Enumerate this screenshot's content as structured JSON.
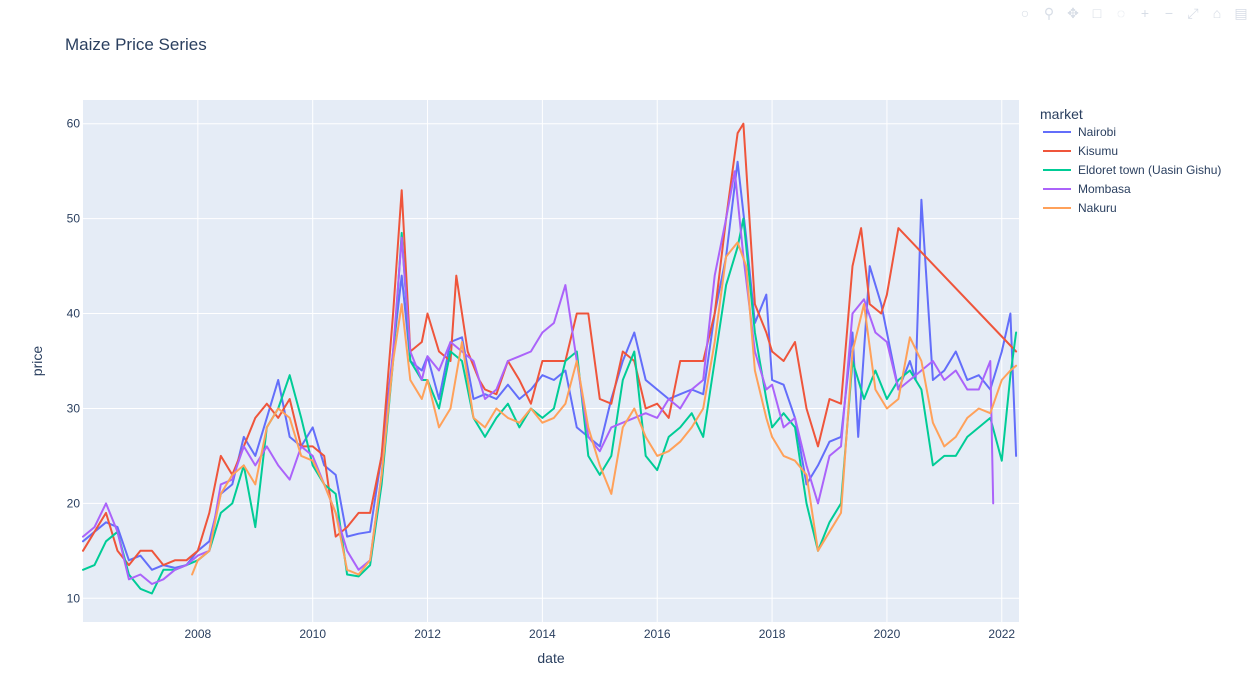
{
  "chart_data": {
    "type": "line",
    "title": "Maize Price Series",
    "xlabel": "date",
    "ylabel": "price",
    "legend_title": "market",
    "legend_position": "right",
    "grid": true,
    "x_ticks": [
      "2008",
      "2010",
      "2012",
      "2014",
      "2016",
      "2018",
      "2020",
      "2022"
    ],
    "y_ticks": [
      10,
      20,
      30,
      40,
      50,
      60
    ],
    "xlim": [
      2006.0,
      2022.3
    ],
    "ylim": [
      7.5,
      62.5
    ],
    "colors": {
      "plot_bg": "#e5ecf6",
      "grid": "#ffffff",
      "text": "#2a3f5f"
    },
    "series": [
      {
        "name": "Nairobi",
        "color": "#636efa",
        "x": [
          2006.0,
          2006.2,
          2006.4,
          2006.6,
          2006.8,
          2007.0,
          2007.2,
          2007.4,
          2007.6,
          2007.8,
          2008.0,
          2008.2,
          2008.4,
          2008.6,
          2008.8,
          2009.0,
          2009.2,
          2009.4,
          2009.6,
          2009.8,
          2010.0,
          2010.2,
          2010.4,
          2010.6,
          2010.8,
          2011.0,
          2011.2,
          2011.4,
          2011.55,
          2011.7,
          2011.9,
          2012.0,
          2012.2,
          2012.4,
          2012.6,
          2012.8,
          2013.0,
          2013.2,
          2013.4,
          2013.6,
          2013.8,
          2014.0,
          2014.2,
          2014.4,
          2014.6,
          2014.8,
          2015.0,
          2015.2,
          2015.4,
          2015.6,
          2015.8,
          2016.0,
          2016.2,
          2016.4,
          2016.6,
          2016.8,
          2017.0,
          2017.2,
          2017.4,
          2017.55,
          2017.7,
          2017.9,
          2018.0,
          2018.2,
          2018.4,
          2018.6,
          2018.8,
          2019.0,
          2019.2,
          2019.4,
          2019.5,
          2019.7,
          2019.9,
          2020.0,
          2020.2,
          2020.4,
          2020.5,
          2020.6,
          2020.8,
          2021.0,
          2021.2,
          2021.4,
          2021.6,
          2021.8,
          2022.0,
          2022.15,
          2022.25
        ],
        "y": [
          16.0,
          17.0,
          18.0,
          17.5,
          14.0,
          14.5,
          13.0,
          13.5,
          13.2,
          13.5,
          15.0,
          16.0,
          21.0,
          22.0,
          27.0,
          25.0,
          29.0,
          33.0,
          27.0,
          26.0,
          28.0,
          24.0,
          23.0,
          16.5,
          16.8,
          17.0,
          25.0,
          36.0,
          44.0,
          35.0,
          34.0,
          35.5,
          31.0,
          37.0,
          37.5,
          31.0,
          31.5,
          31.0,
          32.5,
          31.0,
          32.0,
          33.5,
          33.0,
          34.0,
          28.0,
          27.0,
          26.0,
          31.0,
          35.0,
          38.0,
          33.0,
          32.0,
          31.0,
          31.5,
          32.0,
          31.5,
          40.0,
          46.0,
          56.0,
          48.0,
          39.0,
          42.0,
          33.0,
          32.5,
          29.0,
          22.0,
          24.0,
          26.5,
          27.0,
          38.0,
          27.0,
          45.0,
          41.0,
          38.0,
          32.0,
          35.0,
          33.0,
          52.0,
          33.0,
          34.0,
          36.0,
          33.0,
          33.5,
          32.0,
          36.0,
          40.0,
          25.0
        ]
      },
      {
        "name": "Kisumu",
        "color": "#ef553b",
        "x": [
          2006.0,
          2006.2,
          2006.4,
          2006.6,
          2006.8,
          2007.0,
          2007.2,
          2007.4,
          2007.6,
          2007.8,
          2008.0,
          2008.2,
          2008.4,
          2008.6,
          2008.8,
          2009.0,
          2009.2,
          2009.4,
          2009.6,
          2009.8,
          2010.0,
          2010.2,
          2010.4,
          2010.6,
          2010.8,
          2011.0,
          2011.2,
          2011.4,
          2011.55,
          2011.7,
          2011.9,
          2012.0,
          2012.2,
          2012.4,
          2012.5,
          2012.7,
          2012.9,
          2013.0,
          2013.2,
          2013.4,
          2013.6,
          2013.8,
          2014.0,
          2014.2,
          2014.4,
          2014.6,
          2014.8,
          2015.0,
          2015.2,
          2015.4,
          2015.6,
          2015.8,
          2016.0,
          2016.2,
          2016.4,
          2016.6,
          2016.8,
          2017.0,
          2017.2,
          2017.4,
          2017.5,
          2017.7,
          2017.9,
          2018.0,
          2018.2,
          2018.4,
          2018.6,
          2018.8,
          2019.0,
          2019.2,
          2019.4,
          2019.55,
          2019.7,
          2019.9,
          2020.0,
          2020.2,
          2022.25
        ],
        "y": [
          15.0,
          17.0,
          19.0,
          15.0,
          13.5,
          15.0,
          15.0,
          13.5,
          14.0,
          14.0,
          15.0,
          19.0,
          25.0,
          23.0,
          26.0,
          29.0,
          30.5,
          29.0,
          31.0,
          26.0,
          26.0,
          25.0,
          16.5,
          17.5,
          19.0,
          19.0,
          25.0,
          40.0,
          53.0,
          36.0,
          37.0,
          40.0,
          36.0,
          35.0,
          44.0,
          36.0,
          33.0,
          32.0,
          31.5,
          35.0,
          33.0,
          30.5,
          35.0,
          35.0,
          35.0,
          40.0,
          40.0,
          31.0,
          30.5,
          36.0,
          35.0,
          30.0,
          30.5,
          29.0,
          35.0,
          35.0,
          35.0,
          40.0,
          50.0,
          59.0,
          60.0,
          41.0,
          38.0,
          36.0,
          35.0,
          37.0,
          30.0,
          26.0,
          31.0,
          30.5,
          45.0,
          49.0,
          41.0,
          40.0,
          42.0,
          49.0,
          36.0
        ]
      },
      {
        "name": "Eldoret town (Uasin Gishu)",
        "color": "#00cc96",
        "x": [
          2006.0,
          2006.2,
          2006.4,
          2006.6,
          2006.8,
          2007.0,
          2007.2,
          2007.4,
          2007.6,
          2007.8,
          2008.0,
          2008.2,
          2008.4,
          2008.6,
          2008.8,
          2009.0,
          2009.2,
          2009.4,
          2009.6,
          2009.8,
          2010.0,
          2010.2,
          2010.4,
          2010.6,
          2010.8,
          2011.0,
          2011.2,
          2011.4,
          2011.55,
          2011.7,
          2011.9,
          2012.0,
          2012.2,
          2012.4,
          2012.6,
          2012.8,
          2013.0,
          2013.2,
          2013.4,
          2013.6,
          2013.8,
          2014.0,
          2014.2,
          2014.4,
          2014.6,
          2014.8,
          2015.0,
          2015.2,
          2015.4,
          2015.6,
          2015.8,
          2016.0,
          2016.2,
          2016.4,
          2016.6,
          2016.8,
          2017.0,
          2017.2,
          2017.4,
          2017.5,
          2017.7,
          2017.9,
          2018.0,
          2018.2,
          2018.4,
          2018.6,
          2018.8,
          2019.0,
          2019.2,
          2019.4,
          2019.6,
          2019.8,
          2020.0,
          2020.2,
          2020.4,
          2020.6,
          2020.8,
          2021.0,
          2021.2,
          2021.4,
          2021.6,
          2021.8,
          2022.0,
          2022.15,
          2022.25
        ],
        "y": [
          13.0,
          13.5,
          16.0,
          17.0,
          12.5,
          11.0,
          10.5,
          13.0,
          13.0,
          13.5,
          14.0,
          15.0,
          19.0,
          20.0,
          24.0,
          17.5,
          28.0,
          30.0,
          33.5,
          29.0,
          24.0,
          22.0,
          21.0,
          12.5,
          12.3,
          13.5,
          22.0,
          35.0,
          48.5,
          35.0,
          33.0,
          33.0,
          30.0,
          36.0,
          35.0,
          29.0,
          27.0,
          29.0,
          30.5,
          28.0,
          30.0,
          29.0,
          30.0,
          35.0,
          36.0,
          25.0,
          23.0,
          25.0,
          33.0,
          36.0,
          25.0,
          23.5,
          27.0,
          28.0,
          29.5,
          27.0,
          35.0,
          43.0,
          47.0,
          50.0,
          38.0,
          31.0,
          28.0,
          29.5,
          28.0,
          20.0,
          15.0,
          18.0,
          20.0,
          35.0,
          31.0,
          34.0,
          31.0,
          33.0,
          34.0,
          32.0,
          24.0,
          25.0,
          25.0,
          27.0,
          28.0,
          29.0,
          24.5,
          33.5,
          38.0
        ]
      },
      {
        "name": "Mombasa",
        "color": "#ab63fa",
        "x": [
          2006.0,
          2006.2,
          2006.4,
          2006.6,
          2006.8,
          2007.0,
          2007.2,
          2007.4,
          2007.6,
          2007.8,
          2008.0,
          2008.2,
          2008.4,
          2008.6,
          2008.8,
          2009.0,
          2009.2,
          2009.4,
          2009.6,
          2009.8,
          2010.0,
          2010.2,
          2010.4,
          2010.6,
          2010.8,
          2011.0,
          2011.2,
          2011.4,
          2011.55,
          2011.7,
          2011.9,
          2012.0,
          2012.2,
          2012.4,
          2012.6,
          2012.8,
          2013.0,
          2013.2,
          2013.4,
          2013.6,
          2013.8,
          2014.0,
          2014.2,
          2014.4,
          2014.6,
          2014.8,
          2015.0,
          2015.2,
          2015.4,
          2015.6,
          2015.8,
          2016.0,
          2016.2,
          2016.4,
          2016.6,
          2016.8,
          2017.0,
          2017.2,
          2017.35,
          2017.5,
          2017.7,
          2017.9,
          2018.0,
          2018.2,
          2018.4,
          2018.6,
          2018.8,
          2019.0,
          2019.2,
          2019.4,
          2019.6,
          2019.8,
          2020.0,
          2020.2,
          2020.4,
          2020.6,
          2020.8,
          2021.0,
          2021.2,
          2021.4,
          2021.6,
          2021.8,
          2021.85
        ],
        "y": [
          16.5,
          17.5,
          20.0,
          17.0,
          12.0,
          12.5,
          11.5,
          12.0,
          13.0,
          13.5,
          14.5,
          15.0,
          22.0,
          22.5,
          26.0,
          24.0,
          26.0,
          24.0,
          22.5,
          26.0,
          25.0,
          22.0,
          19.0,
          15.0,
          13.0,
          14.0,
          23.0,
          36.0,
          48.0,
          36.0,
          33.0,
          35.5,
          34.0,
          37.0,
          36.0,
          35.0,
          31.0,
          32.0,
          35.0,
          35.5,
          36.0,
          38.0,
          39.0,
          43.0,
          35.0,
          27.0,
          25.5,
          28.0,
          28.5,
          29.0,
          29.5,
          29.0,
          31.0,
          30.0,
          32.0,
          33.0,
          44.0,
          50.0,
          55.0,
          46.0,
          36.0,
          32.0,
          32.5,
          28.0,
          29.0,
          24.0,
          20.0,
          25.0,
          26.0,
          40.0,
          41.5,
          38.0,
          37.0,
          32.0,
          33.0,
          34.0,
          35.0,
          33.0,
          34.0,
          32.0,
          32.0,
          35.0,
          20.0
        ]
      },
      {
        "name": "Nakuru",
        "color": "#ffa15a",
        "x": [
          2007.9,
          2008.0,
          2008.2,
          2008.4,
          2008.6,
          2008.8,
          2009.0,
          2009.2,
          2009.4,
          2009.6,
          2009.8,
          2010.0,
          2010.2,
          2010.4,
          2010.6,
          2010.8,
          2011.0,
          2011.2,
          2011.4,
          2011.55,
          2011.7,
          2011.9,
          2012.0,
          2012.2,
          2012.4,
          2012.6,
          2012.8,
          2013.0,
          2013.2,
          2013.4,
          2013.6,
          2013.8,
          2014.0,
          2014.2,
          2014.4,
          2014.6,
          2014.8,
          2015.0,
          2015.2,
          2015.4,
          2015.6,
          2015.8,
          2016.0,
          2016.2,
          2016.4,
          2016.6,
          2016.8,
          2017.0,
          2017.2,
          2017.4,
          2017.55,
          2017.7,
          2017.9,
          2018.0,
          2018.2,
          2018.4,
          2018.6,
          2018.8,
          2019.0,
          2019.2,
          2019.4,
          2019.6,
          2019.8,
          2020.0,
          2020.2,
          2020.4,
          2020.6,
          2020.8,
          2021.0,
          2021.2,
          2021.4,
          2021.6,
          2021.8,
          2022.0,
          2022.15,
          2022.25
        ],
        "y": [
          12.5,
          14.0,
          15.0,
          21.0,
          23.0,
          24.0,
          22.0,
          28.0,
          30.0,
          29.0,
          25.0,
          24.5,
          22.0,
          19.0,
          13.0,
          12.5,
          14.0,
          23.0,
          35.0,
          41.0,
          33.0,
          31.0,
          33.0,
          28.0,
          30.0,
          37.0,
          29.0,
          28.0,
          30.0,
          29.0,
          28.5,
          30.0,
          28.5,
          29.0,
          30.5,
          35.0,
          28.0,
          24.0,
          21.0,
          28.0,
          30.0,
          27.0,
          25.0,
          25.5,
          26.5,
          28.0,
          30.0,
          37.0,
          46.0,
          47.5,
          45.0,
          34.0,
          29.0,
          27.0,
          25.0,
          24.5,
          23.0,
          15.0,
          17.0,
          19.0,
          36.0,
          41.0,
          32.0,
          30.0,
          31.0,
          37.5,
          35.0,
          28.5,
          26.0,
          27.0,
          29.0,
          30.0,
          29.5,
          33.0,
          34.0,
          34.5
        ]
      }
    ]
  }
}
